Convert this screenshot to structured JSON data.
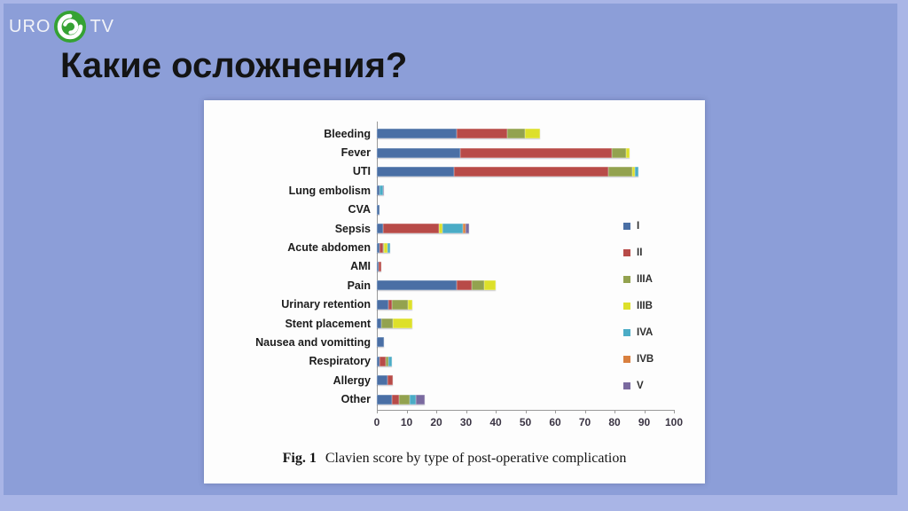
{
  "logo": {
    "uro": "URO",
    "tv": "TV"
  },
  "title": "Какие осложнения?",
  "figure": {
    "caption_label": "Fig. 1",
    "caption_text": "Clavien score by type of post-operative complication"
  },
  "chart_data": {
    "type": "bar",
    "orientation": "horizontal",
    "stacked": true,
    "title": "Clavien score by type of post-operative complication",
    "xlabel": "",
    "ylabel": "",
    "xlim": [
      0,
      100
    ],
    "xticks": [
      0,
      10,
      20,
      30,
      40,
      50,
      60,
      70,
      80,
      90,
      100
    ],
    "grid": false,
    "legend_position": "right",
    "categories": [
      "Bleeding",
      "Fever",
      "UTI",
      "Lung embolism",
      "CVA",
      "Sepsis",
      "Acute abdomen",
      "AMI",
      "Pain",
      "Urinary retention",
      "Stent placement",
      "Nausea and vomitting",
      "Respiratory",
      "Allergy",
      "Other"
    ],
    "series": [
      {
        "name": "I",
        "color": "#4a6fa5",
        "values": [
          27,
          28,
          26,
          1,
          1,
          2,
          1,
          0.5,
          27,
          4,
          1.5,
          2.5,
          1,
          3.5,
          5
        ]
      },
      {
        "name": "II",
        "color": "#b84b48",
        "values": [
          17,
          51,
          52,
          0,
          0,
          19,
          1,
          1,
          5,
          1,
          0,
          0,
          2,
          2,
          2.5
        ]
      },
      {
        "name": "IIIA",
        "color": "#93a24f",
        "values": [
          6,
          5,
          8,
          0,
          0,
          0,
          0.5,
          0,
          4,
          5.5,
          4,
          0,
          1,
          0,
          3.5
        ]
      },
      {
        "name": "IIIB",
        "color": "#dde02a",
        "values": [
          5,
          1,
          1,
          0,
          0,
          1,
          1,
          0,
          4,
          1.5,
          6.5,
          0,
          0,
          0,
          0
        ]
      },
      {
        "name": "IVA",
        "color": "#4bacc6",
        "values": [
          0,
          0,
          1,
          1,
          0,
          7,
          1,
          0,
          0,
          0,
          0,
          0,
          1,
          0,
          2
        ]
      },
      {
        "name": "IVB",
        "color": "#d9803f",
        "values": [
          0,
          0,
          0,
          0,
          0,
          1,
          0,
          0,
          0,
          0,
          0,
          0,
          0,
          0,
          0
        ]
      },
      {
        "name": "V",
        "color": "#7a6a9f",
        "values": [
          0,
          0,
          0,
          0.5,
          0,
          1,
          0,
          0,
          0,
          0,
          0,
          0,
          0,
          0,
          3
        ]
      }
    ]
  }
}
